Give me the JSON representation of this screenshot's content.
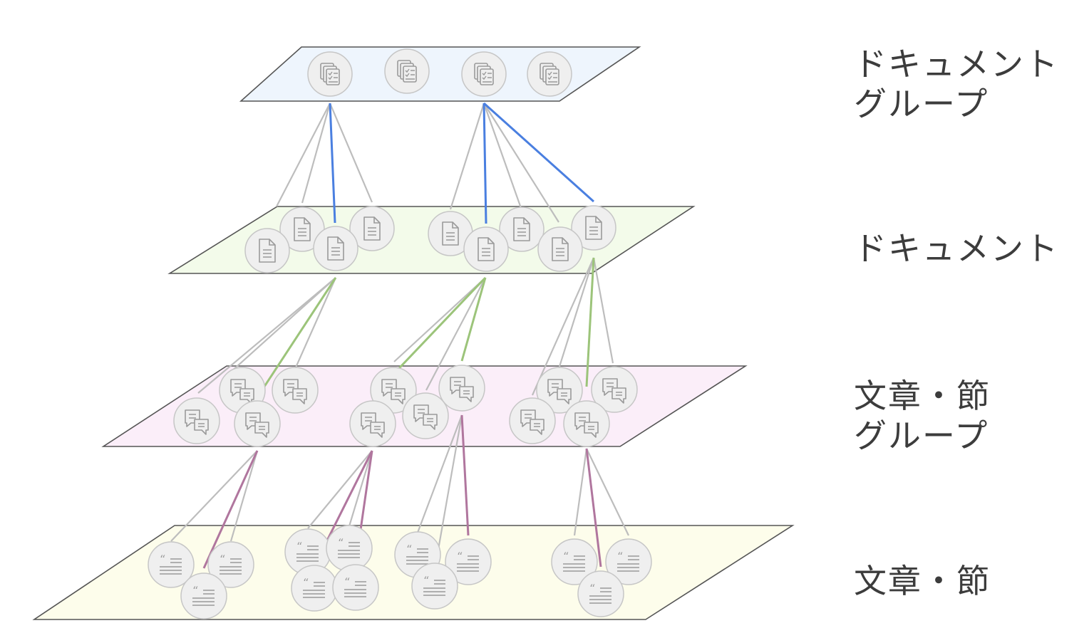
{
  "labels": {
    "document_group": {
      "line1": "ドキュメント",
      "line2": "グループ"
    },
    "document": {
      "line1": "ドキュメント"
    },
    "sentence_group": {
      "line1": "文章・節",
      "line2": "グループ"
    },
    "sentence": {
      "line1": "文章・節"
    }
  },
  "colors": {
    "plane_document_group": "#eef5fd",
    "plane_document": "#f3fbea",
    "plane_sentence_group": "#fbeef9",
    "plane_sentence": "#fdfdeb",
    "edge_document_group": "#4a7fe0",
    "edge_document": "#9cc47a",
    "edge_sentence_group": "#b0769e",
    "edge_neutral": "#bdbdbd",
    "node_fill": "#efefef",
    "node_stroke": "#c6c6c6",
    "icon_stroke": "#9a9a9a"
  },
  "icons": {
    "document_group": "document-stack-icon",
    "document": "document-icon",
    "sentence_group": "speech-bubbles-icon",
    "sentence": "quote-text-icon"
  }
}
